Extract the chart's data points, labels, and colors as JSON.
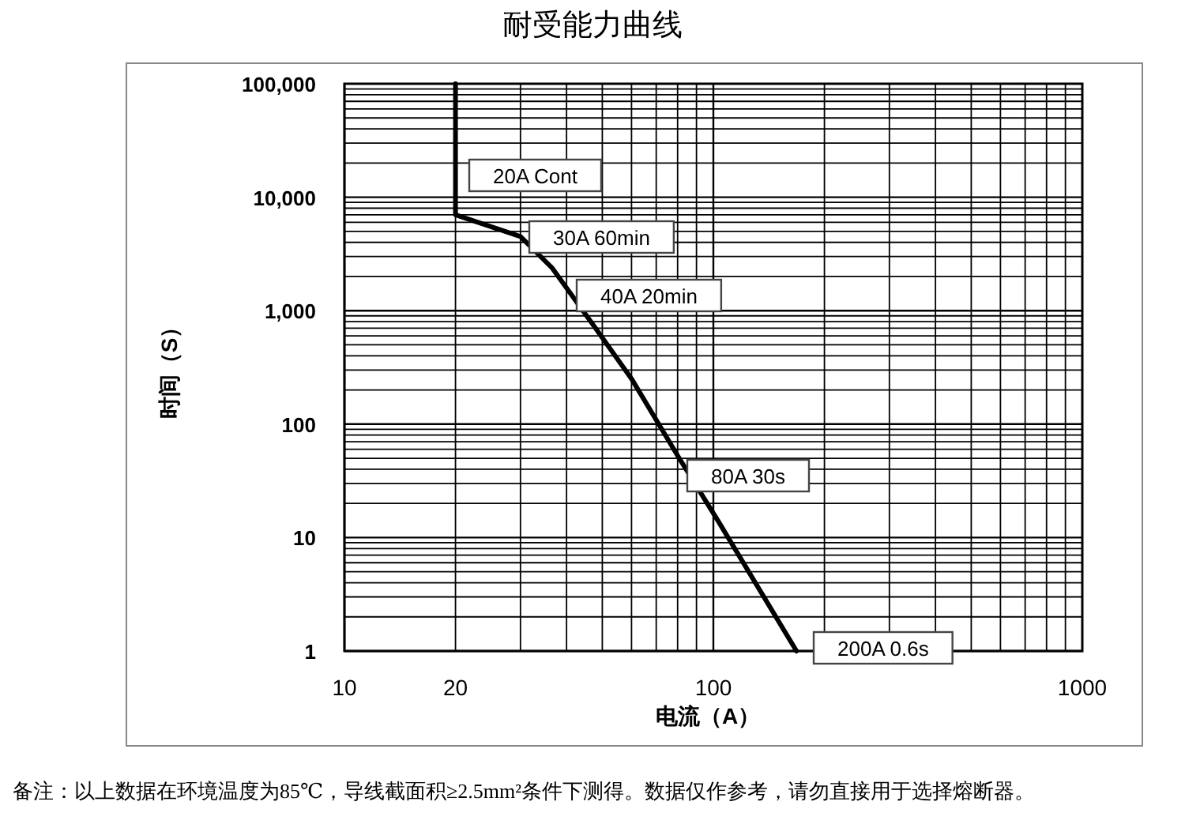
{
  "chart_data": {
    "type": "line",
    "title": "耐受能力曲线",
    "xlabel": "电流（A）",
    "ylabel": "时间（S）",
    "log": "xy",
    "grid": true,
    "marker": "none",
    "line_style": "solid",
    "xlim": [
      10,
      1000
    ],
    "ylim": [
      1,
      100000
    ],
    "xticks": [
      10,
      20,
      100,
      1000
    ],
    "yticks": [
      {
        "value": 1,
        "label": "1"
      },
      {
        "value": 10,
        "label": "10"
      },
      {
        "value": 100,
        "label": "100"
      },
      {
        "value": 1000,
        "label": "1,000"
      },
      {
        "value": 10000,
        "label": "10,000"
      },
      {
        "value": 100000,
        "label": "100,000"
      }
    ],
    "x": [
      20,
      20,
      30,
      36.6,
      46.9,
      60,
      80.5,
      103,
      168
    ],
    "series": [
      {
        "color": "#000000",
        "values": [
          100000,
          7000,
          4500,
          2370,
          774,
          251,
          51,
          14,
          1
        ]
      }
    ],
    "annotations": [
      "20A Cont",
      "30A 60min",
      "40A 20min",
      "80A 30s",
      "200A 0.6s",
      "备注：以上数据在环境温度为85℃，导线截面积≥2.5mm²条件下测得。数据仅作参考，请勿直接用于选择熔断器。"
    ]
  }
}
